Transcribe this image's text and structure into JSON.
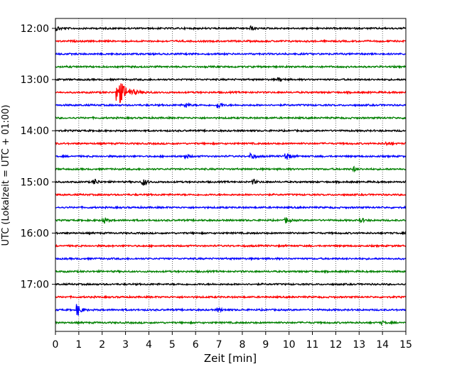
{
  "chart_data": {
    "type": "line",
    "title": "",
    "xlabel": "Zeit  [min]",
    "ylabel": "UTC (Lokalzeit = UTC + 01:00)",
    "xlim": [
      0,
      15
    ],
    "x_ticks": [
      "0",
      "1",
      "2",
      "3",
      "4",
      "5",
      "6",
      "7",
      "8",
      "9",
      "10",
      "11",
      "12",
      "13",
      "14",
      "15"
    ],
    "y_ticks": [
      "12:00",
      "13:00",
      "14:00",
      "15:00",
      "16:00",
      "17:00"
    ],
    "row_interval_minutes": 15,
    "start_time": "12:00",
    "end_time": "17:45",
    "grid": "vertical dotted lines at each minute",
    "trace_colors": [
      "#000000",
      "#ff0000",
      "#0000ff",
      "#008000"
    ],
    "traces": [
      {
        "time": "12:00",
        "color": "#000000",
        "events": [
          {
            "minute": 0.1,
            "amplitude": 0.3
          },
          {
            "minute": 8.4,
            "amplitude": 0.3
          }
        ]
      },
      {
        "time": "12:15",
        "color": "#ff0000",
        "events": []
      },
      {
        "time": "12:30",
        "color": "#0000ff",
        "events": []
      },
      {
        "time": "12:45",
        "color": "#008000",
        "events": []
      },
      {
        "time": "13:00",
        "color": "#000000",
        "events": [
          {
            "minute": 9.6,
            "amplitude": 0.25
          }
        ]
      },
      {
        "time": "13:15",
        "color": "#ff0000",
        "events": [
          {
            "minute": 2.7,
            "amplitude": 1.9
          }
        ]
      },
      {
        "time": "13:30",
        "color": "#0000ff",
        "events": [
          {
            "minute": 5.6,
            "amplitude": 0.3
          },
          {
            "minute": 7.0,
            "amplitude": 0.4
          }
        ]
      },
      {
        "time": "13:45",
        "color": "#008000",
        "events": []
      },
      {
        "time": "14:00",
        "color": "#000000",
        "events": []
      },
      {
        "time": "14:15",
        "color": "#ff0000",
        "events": [
          {
            "minute": 14.2,
            "amplitude": 0.2
          }
        ]
      },
      {
        "time": "14:30",
        "color": "#0000ff",
        "events": [
          {
            "minute": 5.6,
            "amplitude": 0.3
          },
          {
            "minute": 8.4,
            "amplitude": 0.5
          },
          {
            "minute": 9.9,
            "amplitude": 0.6
          }
        ]
      },
      {
        "time": "14:45",
        "color": "#008000",
        "events": [
          {
            "minute": 12.8,
            "amplitude": 0.3
          }
        ]
      },
      {
        "time": "15:00",
        "color": "#000000",
        "events": [
          {
            "minute": 1.7,
            "amplitude": 0.4
          },
          {
            "minute": 3.8,
            "amplitude": 0.5
          },
          {
            "minute": 8.5,
            "amplitude": 0.3
          }
        ]
      },
      {
        "time": "15:15",
        "color": "#ff0000",
        "events": []
      },
      {
        "time": "15:30",
        "color": "#0000ff",
        "events": []
      },
      {
        "time": "15:45",
        "color": "#008000",
        "events": [
          {
            "minute": 2.1,
            "amplitude": 0.4
          },
          {
            "minute": 9.9,
            "amplitude": 0.4
          },
          {
            "minute": 13.1,
            "amplitude": 0.3
          }
        ]
      },
      {
        "time": "16:00",
        "color": "#000000",
        "events": []
      },
      {
        "time": "16:15",
        "color": "#ff0000",
        "events": []
      },
      {
        "time": "16:30",
        "color": "#0000ff",
        "events": []
      },
      {
        "time": "16:45",
        "color": "#008000",
        "events": []
      },
      {
        "time": "17:00",
        "color": "#000000",
        "events": []
      },
      {
        "time": "17:15",
        "color": "#ff0000",
        "events": []
      },
      {
        "time": "17:30",
        "color": "#0000ff",
        "events": [
          {
            "minute": 1.0,
            "amplitude": 0.8
          },
          {
            "minute": 7.0,
            "amplitude": 0.3
          }
        ]
      },
      {
        "time": "17:45",
        "color": "#008000",
        "events": [
          {
            "minute": 14.0,
            "amplitude": 0.2
          }
        ]
      }
    ]
  }
}
